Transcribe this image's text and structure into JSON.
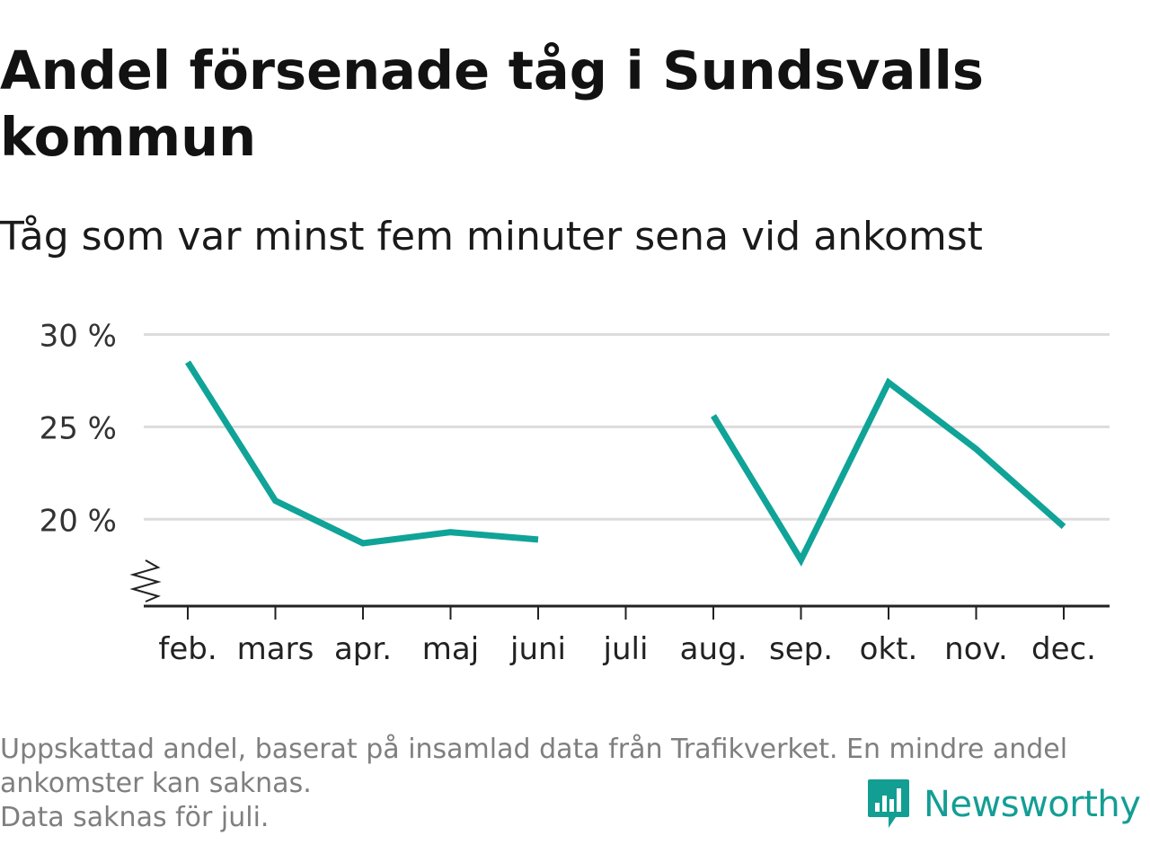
{
  "title": "Andel försenade tåg i Sundsvalls kommun",
  "subtitle": "Tåg som var minst fem minuter sena vid ankomst",
  "notes": [
    "Uppskattad andel, baserat på insamlad data från Trafikverket. En mindre andel",
    "ankomster kan saknas.",
    "Data saknas för juli."
  ],
  "brand": {
    "name": "Newsworthy",
    "logo_icon": "bar-chart-speech-bubble-icon"
  },
  "colors": {
    "line": "#10a398",
    "grid": "#dcdcdc",
    "axis": "#222222",
    "brand": "#139e94"
  },
  "chart_data": {
    "type": "line",
    "x": [
      "feb.",
      "mars",
      "apr.",
      "maj",
      "juni",
      "juli",
      "aug.",
      "sep.",
      "okt.",
      "nov.",
      "dec."
    ],
    "series": [
      {
        "values": [
          28.5,
          21.0,
          18.7,
          19.3,
          18.9,
          null,
          25.6,
          17.8,
          27.4,
          23.8,
          19.6
        ]
      }
    ],
    "yticks": [
      20,
      25,
      30
    ],
    "ytick_labels": [
      "20 %",
      "25 %",
      "30 %"
    ],
    "ylim": [
      15.3,
      30
    ],
    "axis_break": true,
    "grid": true,
    "legend": false
  }
}
